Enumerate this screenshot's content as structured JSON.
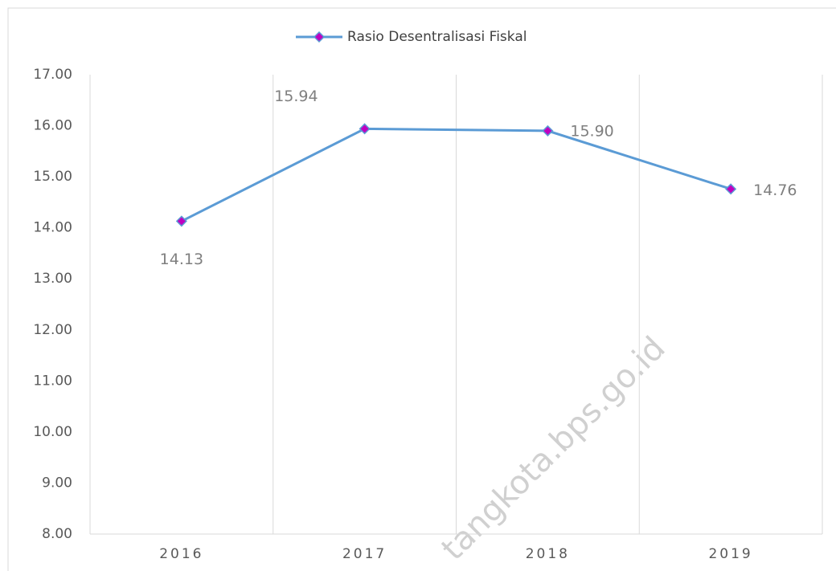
{
  "chart_data": {
    "type": "line",
    "categories": [
      "2016",
      "2017",
      "2018",
      "2019"
    ],
    "series": [
      {
        "name": "Rasio Desentralisasi Fiskal",
        "color": "#5b9bd5",
        "marker_color": "#c000c0",
        "values": [
          14.13,
          15.94,
          15.9,
          14.76
        ],
        "value_labels": [
          "14.13",
          "15.94",
          "15.90",
          "14.76"
        ]
      }
    ],
    "ylim": [
      8,
      17
    ],
    "yticks": [
      {
        "value": 8,
        "label": "8.00"
      },
      {
        "value": 9,
        "label": "9.00"
      },
      {
        "value": 10,
        "label": "10.00"
      },
      {
        "value": 11,
        "label": "11.00"
      },
      {
        "value": 12,
        "label": "12.00"
      },
      {
        "value": 13,
        "label": "13.00"
      },
      {
        "value": 14,
        "label": "14.00"
      },
      {
        "value": 15,
        "label": "15.00"
      },
      {
        "value": 16,
        "label": "16.00"
      },
      {
        "value": 17,
        "label": "17.00"
      }
    ],
    "legend": "top",
    "watermark": "tangkota.bps.go.id"
  }
}
